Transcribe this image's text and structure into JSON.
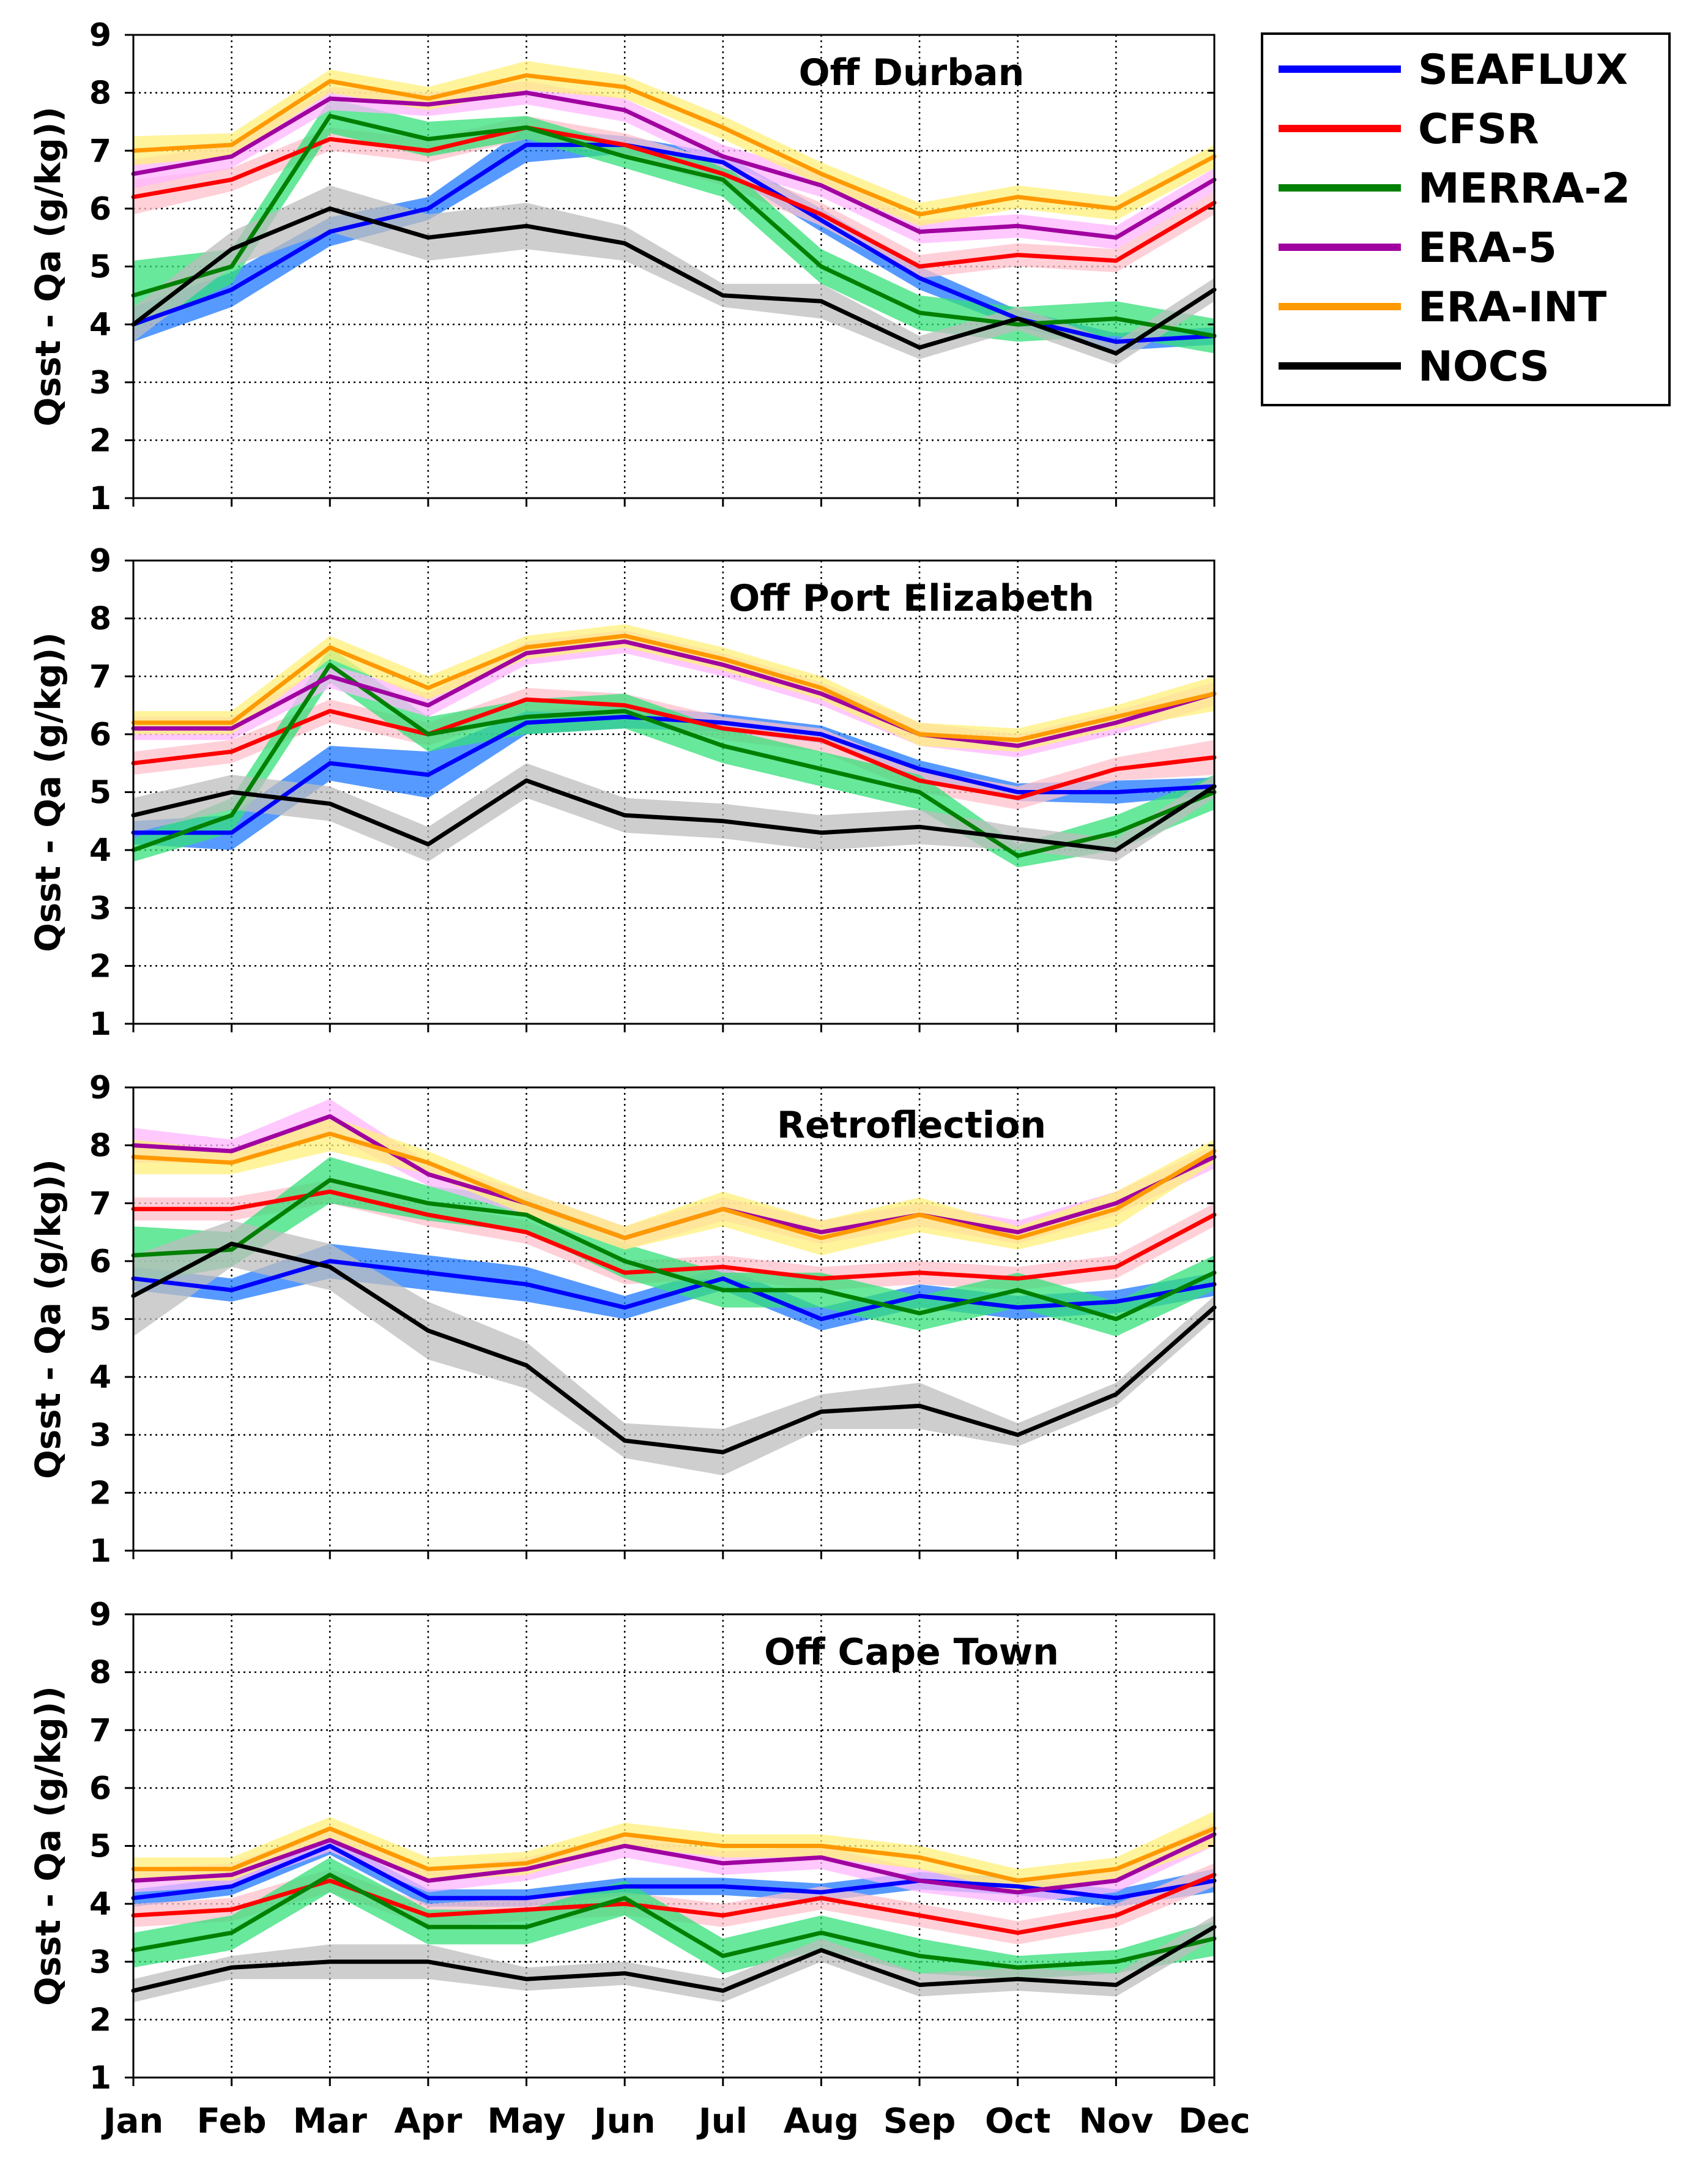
{
  "figure": {
    "months": [
      "Jan",
      "Feb",
      "Mar",
      "Apr",
      "May",
      "Jun",
      "Jul",
      "Aug",
      "Sep",
      "Oct",
      "Nov",
      "Dec"
    ],
    "ylabel": "Qsst - Qa (g/kg))",
    "legend": [
      {
        "name": "SEAFLUX",
        "color": "#0000ff",
        "band_color": "#1f78ff"
      },
      {
        "name": "CFSR",
        "color": "#ff0000",
        "band_color": "#ffc0cb"
      },
      {
        "name": "MERRA-2",
        "color": "#008000",
        "band_color": "#34e07a"
      },
      {
        "name": "ERA-5",
        "color": "#a000a0",
        "band_color": "#ffb6ff"
      },
      {
        "name": "ERA-INT",
        "color": "#ff9900",
        "band_color": "#fff07a"
      },
      {
        "name": "NOCS",
        "color": "#000000",
        "band_color": "#bdbdbd"
      }
    ]
  },
  "chart_data": [
    {
      "type": "line",
      "title": "Off Durban",
      "xlabel": "",
      "ylabel": "Qsst - Qa (g/kg))",
      "categories": [
        "Jan",
        "Feb",
        "Mar",
        "Apr",
        "May",
        "Jun",
        "Jul",
        "Aug",
        "Sep",
        "Oct",
        "Nov",
        "Dec"
      ],
      "ylim": [
        1,
        9
      ],
      "yticks": [
        1,
        2,
        3,
        4,
        5,
        6,
        7,
        8,
        9
      ],
      "grid": true,
      "series": [
        {
          "name": "SEAFLUX",
          "values": [
            4.0,
            4.6,
            5.6,
            6.0,
            7.1,
            7.1,
            6.8,
            5.8,
            4.8,
            4.1,
            3.7,
            3.8
          ],
          "spread": [
            0.3,
            0.3,
            0.25,
            0.2,
            0.3,
            0.15,
            0.15,
            0.2,
            0.2,
            0.15,
            0.15,
            0.15
          ]
        },
        {
          "name": "CFSR",
          "values": [
            6.2,
            6.5,
            7.2,
            7.0,
            7.4,
            7.1,
            6.6,
            5.9,
            5.0,
            5.2,
            5.1,
            6.1
          ],
          "spread": [
            0.3,
            0.2,
            0.2,
            0.2,
            0.2,
            0.2,
            0.2,
            0.2,
            0.2,
            0.2,
            0.2,
            0.2
          ]
        },
        {
          "name": "MERRA-2",
          "values": [
            4.5,
            5.0,
            7.6,
            7.2,
            7.4,
            6.9,
            6.5,
            5.0,
            4.2,
            4.0,
            4.1,
            3.8
          ],
          "spread": [
            0.6,
            0.3,
            0.3,
            0.3,
            0.2,
            0.2,
            0.3,
            0.3,
            0.3,
            0.3,
            0.3,
            0.3
          ]
        },
        {
          "name": "ERA-5",
          "values": [
            6.6,
            6.9,
            7.9,
            7.8,
            8.0,
            7.7,
            6.9,
            6.4,
            5.6,
            5.7,
            5.5,
            6.5
          ],
          "spread": [
            0.25,
            0.2,
            0.2,
            0.2,
            0.2,
            0.2,
            0.2,
            0.2,
            0.2,
            0.2,
            0.2,
            0.2
          ]
        },
        {
          "name": "ERA-INT",
          "values": [
            7.0,
            7.1,
            8.2,
            7.9,
            8.3,
            8.1,
            7.4,
            6.6,
            5.9,
            6.2,
            6.0,
            6.9
          ],
          "spread": [
            0.25,
            0.2,
            0.2,
            0.2,
            0.25,
            0.2,
            0.2,
            0.2,
            0.2,
            0.2,
            0.2,
            0.2
          ]
        },
        {
          "name": "NOCS",
          "values": [
            4.0,
            5.3,
            6.0,
            5.5,
            5.7,
            5.4,
            4.5,
            4.4,
            3.6,
            4.1,
            3.5,
            4.6
          ],
          "spread": [
            0.3,
            0.3,
            0.4,
            0.4,
            0.4,
            0.3,
            0.2,
            0.3,
            0.2,
            0.2,
            0.2,
            0.2
          ]
        }
      ]
    },
    {
      "type": "line",
      "title": "Off Port Elizabeth",
      "xlabel": "",
      "ylabel": "Qsst - Qa (g/kg))",
      "categories": [
        "Jan",
        "Feb",
        "Mar",
        "Apr",
        "May",
        "Jun",
        "Jul",
        "Aug",
        "Sep",
        "Oct",
        "Nov",
        "Dec"
      ],
      "ylim": [
        1,
        9
      ],
      "yticks": [
        1,
        2,
        3,
        4,
        5,
        6,
        7,
        8,
        9
      ],
      "grid": true,
      "series": [
        {
          "name": "SEAFLUX",
          "values": [
            4.3,
            4.3,
            5.5,
            5.3,
            6.2,
            6.3,
            6.2,
            6.0,
            5.4,
            5.0,
            5.0,
            5.1
          ],
          "spread": [
            0.2,
            0.3,
            0.3,
            0.4,
            0.2,
            0.2,
            0.15,
            0.15,
            0.15,
            0.15,
            0.2,
            0.15
          ]
        },
        {
          "name": "CFSR",
          "values": [
            5.5,
            5.7,
            6.4,
            6.0,
            6.6,
            6.5,
            6.1,
            5.9,
            5.2,
            4.9,
            5.4,
            5.6
          ],
          "spread": [
            0.2,
            0.2,
            0.2,
            0.2,
            0.2,
            0.2,
            0.2,
            0.2,
            0.2,
            0.2,
            0.2,
            0.3
          ]
        },
        {
          "name": "MERRA-2",
          "values": [
            4.0,
            4.6,
            7.2,
            6.0,
            6.3,
            6.4,
            5.8,
            5.4,
            5.0,
            3.9,
            4.3,
            5.0
          ],
          "spread": [
            0.2,
            0.3,
            0.3,
            0.3,
            0.3,
            0.3,
            0.3,
            0.3,
            0.3,
            0.2,
            0.3,
            0.3
          ]
        },
        {
          "name": "ERA-5",
          "values": [
            6.1,
            6.1,
            7.0,
            6.5,
            7.4,
            7.6,
            7.2,
            6.7,
            6.0,
            5.8,
            6.2,
            6.7
          ],
          "spread": [
            0.2,
            0.2,
            0.2,
            0.2,
            0.2,
            0.2,
            0.2,
            0.2,
            0.2,
            0.2,
            0.2,
            0.2
          ]
        },
        {
          "name": "ERA-INT",
          "values": [
            6.2,
            6.2,
            7.5,
            6.8,
            7.5,
            7.7,
            7.3,
            6.8,
            6.0,
            5.9,
            6.3,
            6.7
          ],
          "spread": [
            0.2,
            0.2,
            0.2,
            0.2,
            0.2,
            0.2,
            0.2,
            0.2,
            0.2,
            0.2,
            0.2,
            0.3
          ]
        },
        {
          "name": "NOCS",
          "values": [
            4.6,
            5.0,
            4.8,
            4.1,
            5.2,
            4.6,
            4.5,
            4.3,
            4.4,
            4.2,
            4.0,
            5.1
          ],
          "spread": [
            0.3,
            0.3,
            0.3,
            0.3,
            0.3,
            0.3,
            0.3,
            0.3,
            0.3,
            0.2,
            0.2,
            0.2
          ]
        }
      ]
    },
    {
      "type": "line",
      "title": "Retroflection",
      "xlabel": "",
      "ylabel": "Qsst - Qa (g/kg))",
      "categories": [
        "Jan",
        "Feb",
        "Mar",
        "Apr",
        "May",
        "Jun",
        "Jul",
        "Aug",
        "Sep",
        "Oct",
        "Nov",
        "Dec"
      ],
      "ylim": [
        1,
        9
      ],
      "yticks": [
        1,
        2,
        3,
        4,
        5,
        6,
        7,
        8,
        9
      ],
      "grid": true,
      "series": [
        {
          "name": "SEAFLUX",
          "values": [
            5.7,
            5.5,
            6.0,
            5.8,
            5.6,
            5.2,
            5.7,
            5.0,
            5.4,
            5.2,
            5.3,
            5.6
          ],
          "spread": [
            0.2,
            0.2,
            0.3,
            0.3,
            0.3,
            0.2,
            0.2,
            0.2,
            0.2,
            0.2,
            0.2,
            0.2
          ]
        },
        {
          "name": "CFSR",
          "values": [
            6.9,
            6.9,
            7.2,
            6.8,
            6.5,
            5.8,
            5.9,
            5.7,
            5.8,
            5.7,
            5.9,
            6.8
          ],
          "spread": [
            0.2,
            0.2,
            0.2,
            0.2,
            0.2,
            0.2,
            0.2,
            0.2,
            0.2,
            0.2,
            0.2,
            0.2
          ]
        },
        {
          "name": "MERRA-2",
          "values": [
            6.1,
            6.2,
            7.4,
            7.0,
            6.8,
            6.0,
            5.5,
            5.5,
            5.1,
            5.5,
            5.0,
            5.8
          ],
          "spread": [
            0.5,
            0.3,
            0.4,
            0.3,
            0.3,
            0.3,
            0.3,
            0.3,
            0.3,
            0.3,
            0.3,
            0.3
          ]
        },
        {
          "name": "ERA-5",
          "values": [
            8.0,
            7.9,
            8.5,
            7.5,
            7.0,
            6.4,
            6.9,
            6.5,
            6.8,
            6.5,
            7.0,
            7.8
          ],
          "spread": [
            0.3,
            0.2,
            0.3,
            0.2,
            0.2,
            0.2,
            0.2,
            0.2,
            0.2,
            0.2,
            0.2,
            0.2
          ]
        },
        {
          "name": "ERA-INT",
          "values": [
            7.8,
            7.7,
            8.2,
            7.7,
            7.0,
            6.4,
            6.9,
            6.4,
            6.8,
            6.4,
            6.9,
            7.9
          ],
          "spread": [
            0.3,
            0.2,
            0.3,
            0.2,
            0.2,
            0.2,
            0.3,
            0.3,
            0.3,
            0.2,
            0.3,
            0.2
          ]
        },
        {
          "name": "NOCS",
          "values": [
            5.4,
            6.3,
            5.9,
            4.8,
            4.2,
            2.9,
            2.7,
            3.4,
            3.5,
            3.0,
            3.7,
            5.2
          ],
          "spread": [
            0.7,
            0.4,
            0.4,
            0.5,
            0.4,
            0.3,
            0.4,
            0.3,
            0.4,
            0.2,
            0.2,
            0.2
          ]
        }
      ]
    },
    {
      "type": "line",
      "title": "Off Cape Town",
      "xlabel": "",
      "ylabel": "Qsst - Qa (g/kg))",
      "categories": [
        "Jan",
        "Feb",
        "Mar",
        "Apr",
        "May",
        "Jun",
        "Jul",
        "Aug",
        "Sep",
        "Oct",
        "Nov",
        "Dec"
      ],
      "ylim": [
        1,
        9
      ],
      "yticks": [
        1,
        2,
        3,
        4,
        5,
        6,
        7,
        8,
        9
      ],
      "grid": true,
      "series": [
        {
          "name": "SEAFLUX",
          "values": [
            4.1,
            4.3,
            5.0,
            4.1,
            4.1,
            4.3,
            4.3,
            4.2,
            4.4,
            4.3,
            4.1,
            4.4
          ],
          "spread": [
            0.15,
            0.15,
            0.15,
            0.15,
            0.15,
            0.15,
            0.15,
            0.15,
            0.15,
            0.15,
            0.15,
            0.2
          ]
        },
        {
          "name": "CFSR",
          "values": [
            3.8,
            3.9,
            4.4,
            3.8,
            3.9,
            4.0,
            3.8,
            4.1,
            3.8,
            3.5,
            3.8,
            4.5
          ],
          "spread": [
            0.2,
            0.2,
            0.2,
            0.2,
            0.2,
            0.2,
            0.2,
            0.2,
            0.2,
            0.2,
            0.2,
            0.2
          ]
        },
        {
          "name": "MERRA-2",
          "values": [
            3.2,
            3.5,
            4.5,
            3.6,
            3.6,
            4.1,
            3.1,
            3.5,
            3.1,
            2.9,
            3.0,
            3.4
          ],
          "spread": [
            0.3,
            0.3,
            0.3,
            0.3,
            0.3,
            0.3,
            0.3,
            0.3,
            0.3,
            0.2,
            0.2,
            0.3
          ]
        },
        {
          "name": "ERA-5",
          "values": [
            4.4,
            4.5,
            5.1,
            4.4,
            4.6,
            5.0,
            4.7,
            4.8,
            4.4,
            4.2,
            4.4,
            5.2
          ],
          "spread": [
            0.2,
            0.2,
            0.2,
            0.2,
            0.2,
            0.2,
            0.2,
            0.2,
            0.2,
            0.2,
            0.2,
            0.2
          ]
        },
        {
          "name": "ERA-INT",
          "values": [
            4.6,
            4.6,
            5.3,
            4.6,
            4.7,
            5.2,
            5.0,
            5.0,
            4.8,
            4.4,
            4.6,
            5.3
          ],
          "spread": [
            0.2,
            0.2,
            0.2,
            0.2,
            0.2,
            0.2,
            0.2,
            0.2,
            0.2,
            0.2,
            0.2,
            0.3
          ]
        },
        {
          "name": "NOCS",
          "values": [
            2.5,
            2.9,
            3.0,
            3.0,
            2.7,
            2.8,
            2.5,
            3.2,
            2.6,
            2.7,
            2.6,
            3.6
          ],
          "spread": [
            0.2,
            0.2,
            0.3,
            0.3,
            0.2,
            0.2,
            0.2,
            0.2,
            0.2,
            0.2,
            0.2,
            0.2
          ]
        }
      ]
    }
  ]
}
